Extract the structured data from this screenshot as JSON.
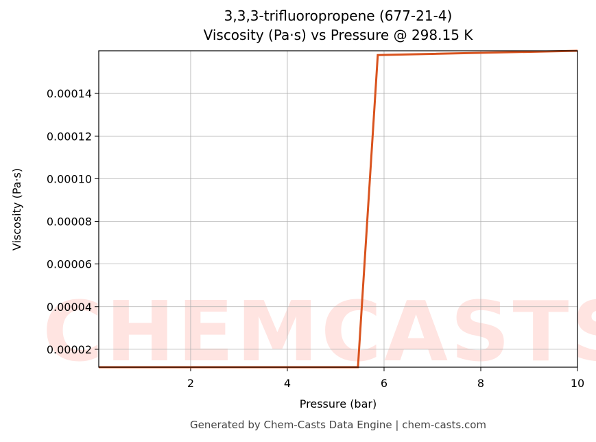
{
  "chart_data": {
    "type": "line",
    "title": "3,3,3-trifluoropropene (677-21-4)",
    "subtitle": "Viscosity (Pa·s) vs Pressure @ 298.15 K",
    "xlabel": "Pressure (bar)",
    "ylabel": "Viscosity (Pa·s)",
    "footer": "Generated by Chem-Casts Data Engine | chem-casts.com",
    "watermark": "CHEMCASTS",
    "x": [
      0.1,
      5.46,
      5.87,
      10
    ],
    "series": [
      {
        "name": "Viscosity",
        "color": "#d9531e",
        "values": [
          1.16e-05,
          1.16e-05,
          0.000158,
          0.00016
        ]
      }
    ],
    "xlim": [
      0.1,
      10
    ],
    "ylim": [
      1.16e-05,
      0.00016
    ],
    "xticks": [
      2,
      4,
      6,
      8,
      10
    ],
    "yticks": [
      2e-05,
      4e-05,
      6e-05,
      8e-05,
      {
        "value": 0.0001,
        "label": "0.00010"
      },
      0.00012,
      0.00014
    ],
    "grid": true
  }
}
